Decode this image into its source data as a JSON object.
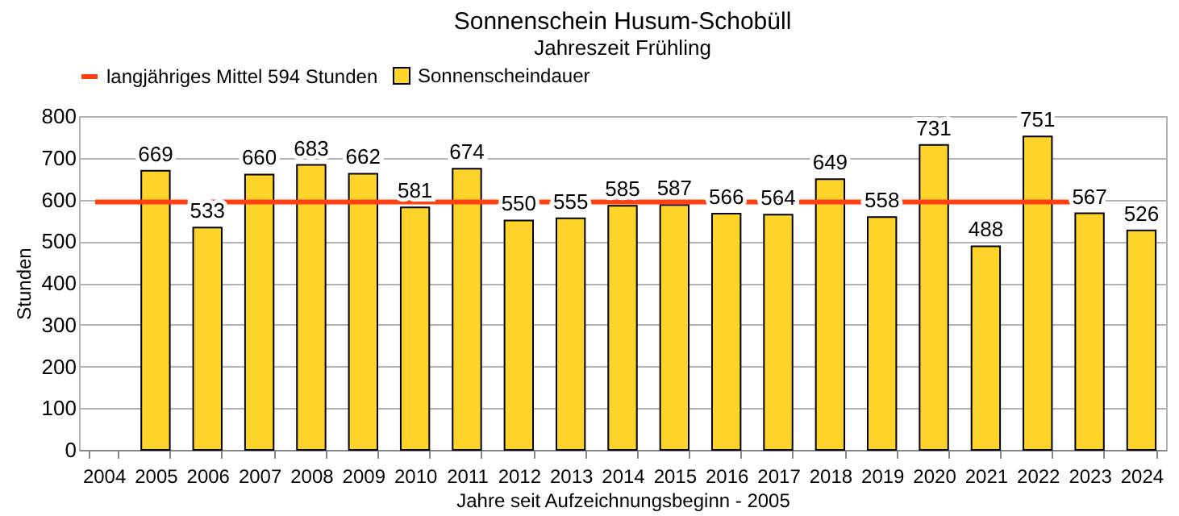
{
  "chart_data": {
    "type": "bar",
    "title": "Sonnenschein  Husum-Schobüll",
    "subtitle": "Jahreszeit  Frühling",
    "xlabel": "Jahre seit Aufzeichnungsbeginn - 2005",
    "ylabel": "Stunden",
    "categories": [
      "2004",
      "2005",
      "2006",
      "2007",
      "2008",
      "2009",
      "2010",
      "2011",
      "2012",
      "2013",
      "2014",
      "2015",
      "2016",
      "2017",
      "2018",
      "2019",
      "2020",
      "2021",
      "2022",
      "2023",
      "2024"
    ],
    "series": [
      {
        "name": "Sonnenscheindauer",
        "color": "#ffd42a",
        "values": [
          null,
          669,
          533,
          660,
          683,
          662,
          581,
          674,
          550,
          555,
          585,
          587,
          566,
          564,
          649,
          558,
          731,
          488,
          751,
          567,
          526
        ]
      }
    ],
    "ref_lines": [
      {
        "axis": "y",
        "value": 594,
        "label": "langjähriges Mittel 594 Stunden",
        "color": "#ff4010"
      }
    ],
    "ylim": [
      0,
      800
    ],
    "yticks": [
      0,
      100,
      200,
      300,
      400,
      500,
      600,
      700,
      800
    ],
    "data_labels": true,
    "grid": "y",
    "legend": "top"
  }
}
